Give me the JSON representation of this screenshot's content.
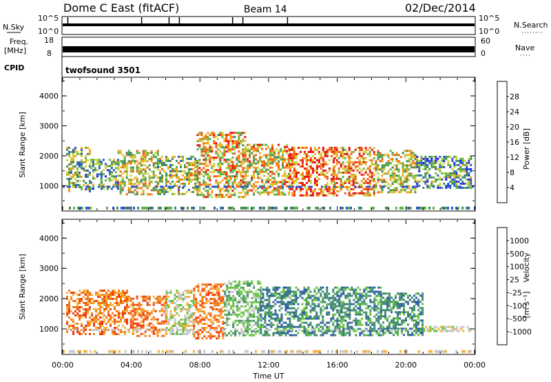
{
  "header": {
    "station": "Dome C East (fitACF)",
    "beam": "Beam 14",
    "date": "02/Dec/2014"
  },
  "status_panels": {
    "nsky_label": "N.Sky",
    "nsky_ticks": [
      "10^5",
      "10^0"
    ],
    "nsearch_label": "N.Search",
    "nsearch_ticks": [
      "10^5",
      "10^0"
    ],
    "freq_label": "Freq.",
    "freq_unit": "[MHz]",
    "freq_ticks": [
      "18",
      "8"
    ],
    "nave_label": "Nave",
    "nave_ticks": [
      "60",
      "0"
    ],
    "cpid_label": "CPID",
    "cpid_value": "twofsound 3501"
  },
  "chart_data": [
    {
      "type": "heatmap",
      "name": "power",
      "ylabel": "Slant Range [km]",
      "yticks": [
        "4000",
        "3000",
        "2000",
        "1000"
      ],
      "ylim": [
        180,
        4600
      ],
      "xlim_hours": [
        0,
        24
      ],
      "colorbar_label": "Power [dB]",
      "colorbar_ticks": [
        "28",
        "24",
        "20",
        "16",
        "12",
        "8",
        "4"
      ],
      "colors": [
        "#1a1aff",
        "#2a55c8",
        "#3f8a5a",
        "#5fb045",
        "#c8d23a",
        "#f2a21e",
        "#f06010",
        "#e81010"
      ],
      "bands": [
        {
          "hours": [
            0.2,
            1.6
          ],
          "range_km": [
            800,
            2300
          ],
          "level": 0.45
        },
        {
          "hours": [
            1.6,
            3.2
          ],
          "range_km": [
            900,
            1900
          ],
          "level": 0.4
        },
        {
          "hours": [
            3.2,
            5.5
          ],
          "range_km": [
            700,
            2200
          ],
          "level": 0.55
        },
        {
          "hours": [
            5.5,
            7.8
          ],
          "range_km": [
            700,
            2000
          ],
          "level": 0.5
        },
        {
          "hours": [
            7.8,
            10.6
          ],
          "range_km": [
            600,
            2800
          ],
          "level": 0.65
        },
        {
          "hours": [
            10.6,
            13.2
          ],
          "range_km": [
            700,
            2400
          ],
          "level": 0.6
        },
        {
          "hours": [
            13.2,
            15.8
          ],
          "range_km": [
            700,
            2300
          ],
          "level": 0.8
        },
        {
          "hours": [
            15.8,
            18.2
          ],
          "range_km": [
            700,
            2300
          ],
          "level": 0.75
        },
        {
          "hours": [
            18.2,
            20.6
          ],
          "range_km": [
            800,
            2200
          ],
          "level": 0.55
        },
        {
          "hours": [
            20.6,
            23.8
          ],
          "range_km": [
            900,
            2000
          ],
          "level": 0.35
        }
      ]
    },
    {
      "type": "heatmap",
      "name": "velocity",
      "ylabel": "Slant Range [km]",
      "yticks": [
        "4000",
        "3000",
        "2000",
        "1000"
      ],
      "ylim": [
        180,
        4600
      ],
      "xlim_hours": [
        0,
        24
      ],
      "xticks": [
        "00:00",
        "04:00",
        "08:00",
        "12:00",
        "16:00",
        "20:00",
        "00:00"
      ],
      "xlabel": "Time UT",
      "colorbar_label": "Velocity",
      "colorbar_unit": "[m s⁻¹]",
      "colorbar_ticks": [
        "1000",
        "500",
        "100",
        "25",
        "-25",
        "-100",
        "-500",
        "-1000"
      ],
      "colors": [
        "#1a2eb8",
        "#2f5aa8",
        "#3f8a70",
        "#62c23c",
        "#c8c8c8",
        "#f6b23a",
        "#f07a1a",
        "#ee3a10",
        "#e01010"
      ],
      "bands": [
        {
          "hours": [
            0.2,
            3.8
          ],
          "range_km": [
            800,
            2300
          ],
          "color_index": 6
        },
        {
          "hours": [
            3.8,
            6.0
          ],
          "range_km": [
            800,
            2100
          ],
          "color_index": 6
        },
        {
          "hours": [
            6.0,
            7.6
          ],
          "range_km": [
            800,
            2300
          ],
          "color_index": 4
        },
        {
          "hours": [
            7.6,
            9.4
          ],
          "range_km": [
            700,
            2500
          ],
          "color_index": 6
        },
        {
          "hours": [
            9.4,
            11.5
          ],
          "range_km": [
            800,
            2600
          ],
          "color_index": 3
        },
        {
          "hours": [
            11.5,
            14.5
          ],
          "range_km": [
            800,
            2400
          ],
          "color_index": 2
        },
        {
          "hours": [
            14.5,
            18.5
          ],
          "range_km": [
            800,
            2400
          ],
          "color_index": 2
        },
        {
          "hours": [
            18.5,
            21.0
          ],
          "range_km": [
            800,
            2200
          ],
          "color_index": 2
        },
        {
          "hours": [
            21.0,
            23.8
          ],
          "range_km": [
            900,
            1100
          ],
          "color_index": 4
        }
      ]
    }
  ]
}
